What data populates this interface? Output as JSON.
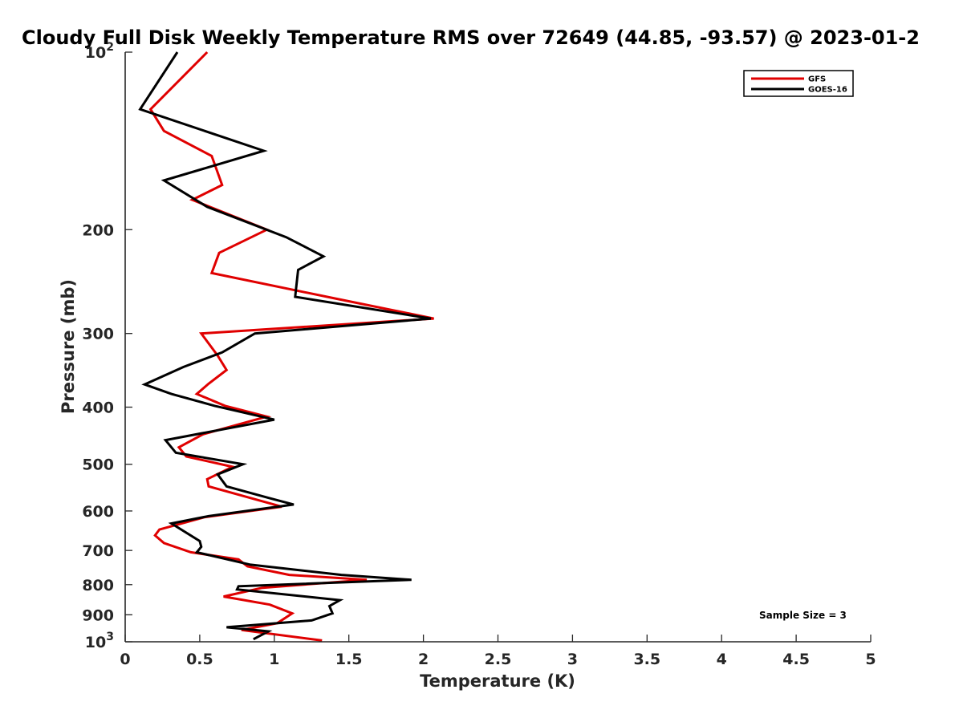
{
  "chart_data": {
    "type": "line",
    "title": "Cloudy Full Disk Weekly Temperature RMS over 72649 (44.85, -93.57) @ 2023-01-2",
    "xlabel": "Temperature (K)",
    "ylabel": "Pressure (mb)",
    "xlim": [
      0,
      5
    ],
    "ylim": [
      1000,
      100
    ],
    "yscale": "log",
    "grid": false,
    "legend_position": "top-right",
    "x_ticks": [
      "0",
      "0.5",
      "1",
      "1.5",
      "2",
      "2.5",
      "3",
      "3.5",
      "4",
      "4.5",
      "5"
    ],
    "x_tick_values": [
      0,
      0.5,
      1,
      1.5,
      2,
      2.5,
      3,
      3.5,
      4,
      4.5,
      5
    ],
    "y_ticks": [
      {
        "value": 100,
        "base": "10",
        "exp": "2"
      },
      {
        "value": 200,
        "base": "200",
        "exp": ""
      },
      {
        "value": 300,
        "base": "300",
        "exp": ""
      },
      {
        "value": 400,
        "base": "400",
        "exp": ""
      },
      {
        "value": 500,
        "base": "500",
        "exp": ""
      },
      {
        "value": 600,
        "base": "600",
        "exp": ""
      },
      {
        "value": 700,
        "base": "700",
        "exp": ""
      },
      {
        "value": 800,
        "base": "800",
        "exp": ""
      },
      {
        "value": 900,
        "base": "900",
        "exp": ""
      },
      {
        "value": 1000,
        "base": "10",
        "exp": "3"
      }
    ],
    "series": [
      {
        "name": "GFS",
        "color": "#e00000",
        "points": [
          [
            0.55,
            100
          ],
          [
            0.17,
            125
          ],
          [
            0.26,
            136
          ],
          [
            0.58,
            150
          ],
          [
            0.65,
            168
          ],
          [
            0.45,
            178
          ],
          [
            0.95,
            200
          ],
          [
            0.63,
            219
          ],
          [
            0.58,
            237
          ],
          [
            1.42,
            262
          ],
          [
            2.07,
            283
          ],
          [
            0.51,
            300
          ],
          [
            0.62,
            327
          ],
          [
            0.68,
            346
          ],
          [
            0.56,
            365
          ],
          [
            0.48,
            380
          ],
          [
            0.67,
            398
          ],
          [
            0.95,
            415
          ],
          [
            0.52,
            445
          ],
          [
            0.36,
            468
          ],
          [
            0.41,
            485
          ],
          [
            0.72,
            505
          ],
          [
            0.55,
            530
          ],
          [
            0.56,
            545
          ],
          [
            1.05,
            590
          ],
          [
            0.53,
            615
          ],
          [
            0.23,
            645
          ],
          [
            0.2,
            660
          ],
          [
            0.26,
            680
          ],
          [
            0.44,
            705
          ],
          [
            0.76,
            725
          ],
          [
            0.82,
            745
          ],
          [
            1.1,
            770
          ],
          [
            1.62,
            785
          ],
          [
            0.92,
            810
          ],
          [
            0.66,
            838
          ],
          [
            0.97,
            865
          ],
          [
            1.12,
            895
          ],
          [
            1.02,
            930
          ],
          [
            0.78,
            955
          ],
          [
            1.32,
            995
          ]
        ]
      },
      {
        "name": "GOES-16",
        "color": "#000000",
        "points": [
          [
            0.35,
            100
          ],
          [
            0.1,
            125
          ],
          [
            0.93,
            147
          ],
          [
            0.26,
            165
          ],
          [
            0.55,
            183
          ],
          [
            1.08,
            206
          ],
          [
            1.33,
            222
          ],
          [
            1.16,
            234
          ],
          [
            1.14,
            260
          ],
          [
            2.05,
            283
          ],
          [
            0.87,
            300
          ],
          [
            0.65,
            323
          ],
          [
            0.39,
            342
          ],
          [
            0.13,
            366
          ],
          [
            0.31,
            380
          ],
          [
            0.6,
            398
          ],
          [
            1.0,
            420
          ],
          [
            0.27,
            455
          ],
          [
            0.34,
            478
          ],
          [
            0.79,
            500
          ],
          [
            0.62,
            520
          ],
          [
            0.68,
            545
          ],
          [
            0.96,
            570
          ],
          [
            1.13,
            585
          ],
          [
            0.56,
            612
          ],
          [
            0.31,
            630
          ],
          [
            0.5,
            675
          ],
          [
            0.51,
            690
          ],
          [
            0.48,
            705
          ],
          [
            0.84,
            740
          ],
          [
            1.45,
            770
          ],
          [
            1.92,
            785
          ],
          [
            0.76,
            805
          ],
          [
            0.75,
            815
          ],
          [
            1.44,
            850
          ],
          [
            1.37,
            870
          ],
          [
            1.39,
            895
          ],
          [
            1.25,
            920
          ],
          [
            0.68,
            945
          ],
          [
            0.96,
            960
          ],
          [
            0.86,
            990
          ]
        ]
      }
    ],
    "annotation": "Sample Size = 3"
  }
}
